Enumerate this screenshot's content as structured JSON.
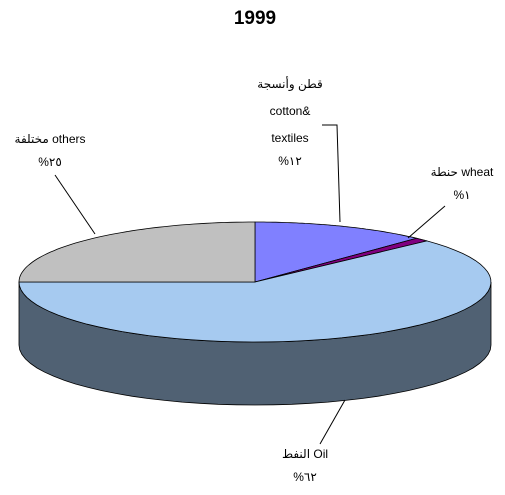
{
  "chart_data": {
    "type": "pie3d",
    "title": "1999",
    "categories": [
      [
        "قطن وأنسجة",
        "cotton&",
        "textiles"
      ],
      [
        "حنطة wheat"
      ],
      [
        "النفط Oil"
      ],
      [
        "مختلفة others"
      ]
    ],
    "values": [
      12,
      1,
      62,
      25
    ],
    "value_labels": [
      "%١٢",
      "%١",
      "%٦٢",
      "%٢٥"
    ],
    "colors": [
      "#8080ff",
      "#800080",
      "#a6caf0",
      "#c0c0c0"
    ]
  }
}
